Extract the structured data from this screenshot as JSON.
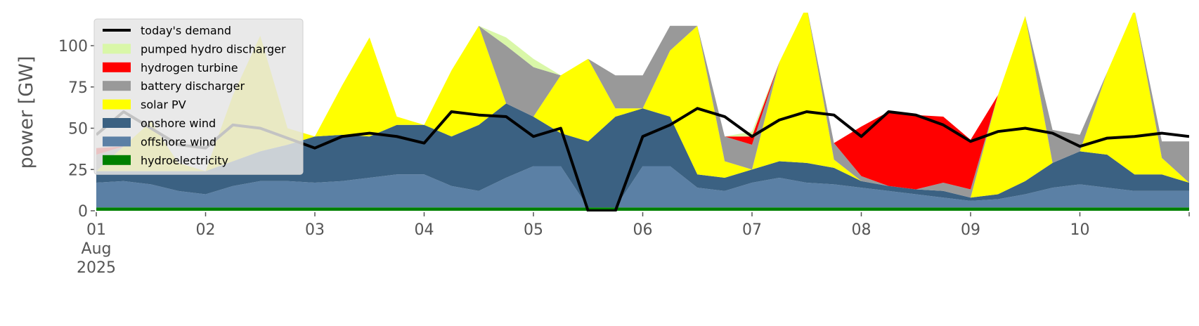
{
  "chart_data": {
    "type": "stacked_area_line",
    "ylabel": "power [GW]",
    "ylim": [
      0,
      120
    ],
    "yticks": [
      0,
      25,
      50,
      75,
      100
    ],
    "xlim": [
      "2025-08-01 00:00",
      "2025-08-11 00:00"
    ],
    "xticks": [
      {
        "value": "2025-08-01 00:00",
        "label": "01\nAug\n2025"
      },
      {
        "value": "2025-08-02 00:00",
        "label": "02"
      },
      {
        "value": "2025-08-03 00:00",
        "label": "03"
      },
      {
        "value": "2025-08-04 00:00",
        "label": "04"
      },
      {
        "value": "2025-08-05 00:00",
        "label": "05"
      },
      {
        "value": "2025-08-06 00:00",
        "label": "06"
      },
      {
        "value": "2025-08-07 00:00",
        "label": "07"
      },
      {
        "value": "2025-08-08 00:00",
        "label": "08"
      },
      {
        "value": "2025-08-09 00:00",
        "label": "09"
      },
      {
        "value": "2025-08-10 00:00",
        "label": "10"
      },
      {
        "value": "2025-08-11 00:00",
        "label": ""
      }
    ],
    "legend": "upper left",
    "x": [
      "2025-08-01 00:00",
      "2025-08-01 06:00",
      "2025-08-01 12:00",
      "2025-08-01 18:00",
      "2025-08-02 00:00",
      "2025-08-02 06:00",
      "2025-08-02 12:00",
      "2025-08-02 18:00",
      "2025-08-03 00:00",
      "2025-08-03 06:00",
      "2025-08-03 12:00",
      "2025-08-03 18:00",
      "2025-08-04 00:00",
      "2025-08-04 06:00",
      "2025-08-04 12:00",
      "2025-08-04 18:00",
      "2025-08-05 00:00",
      "2025-08-05 06:00",
      "2025-08-05 12:00",
      "2025-08-05 18:00",
      "2025-08-06 00:00",
      "2025-08-06 06:00",
      "2025-08-06 12:00",
      "2025-08-06 18:00",
      "2025-08-07 00:00",
      "2025-08-07 06:00",
      "2025-08-07 12:00",
      "2025-08-07 18:00",
      "2025-08-08 00:00",
      "2025-08-08 06:00",
      "2025-08-08 12:00",
      "2025-08-08 18:00",
      "2025-08-09 00:00",
      "2025-08-09 06:00",
      "2025-08-09 12:00",
      "2025-08-09 18:00",
      "2025-08-10 00:00",
      "2025-08-10 06:00",
      "2025-08-10 12:00",
      "2025-08-10 18:00",
      "2025-08-11 00:00"
    ],
    "series": [
      {
        "name": "hydroelectricity",
        "color": "#008000",
        "values": [
          2,
          2,
          2,
          2,
          2,
          2,
          2,
          2,
          2,
          2,
          2,
          2,
          2,
          2,
          2,
          2,
          2,
          2,
          2,
          2,
          2,
          2,
          2,
          2,
          2,
          2,
          2,
          2,
          2,
          2,
          2,
          2,
          2,
          2,
          2,
          2,
          2,
          2,
          2,
          2,
          2
        ]
      },
      {
        "name": "offshore wind",
        "color": "#5b80a5",
        "values": [
          15,
          16,
          14,
          10,
          8,
          13,
          16,
          16,
          15,
          16,
          18,
          20,
          20,
          13,
          10,
          18,
          25,
          25,
          0,
          0,
          25,
          25,
          12,
          10,
          15,
          18,
          15,
          14,
          12,
          10,
          8,
          6,
          4,
          5,
          8,
          12,
          14,
          12,
          10,
          10,
          10
        ]
      },
      {
        "name": "onshore wind",
        "color": "#3b6182",
        "values": [
          7,
          6,
          8,
          12,
          14,
          15,
          18,
          22,
          28,
          28,
          25,
          30,
          30,
          30,
          40,
          45,
          30,
          20,
          40,
          55,
          35,
          30,
          8,
          8,
          8,
          10,
          12,
          10,
          4,
          3,
          3,
          4,
          2,
          3,
          8,
          15,
          20,
          20,
          10,
          10,
          5
        ]
      },
      {
        "name": "solar PV",
        "color": "#ffff00",
        "values": [
          0,
          15,
          30,
          5,
          0,
          40,
          70,
          10,
          0,
          30,
          60,
          5,
          0,
          40,
          60,
          0,
          0,
          35,
          50,
          5,
          0,
          40,
          90,
          10,
          0,
          60,
          95,
          5,
          0,
          0,
          0,
          0,
          0,
          60,
          100,
          0,
          0,
          50,
          100,
          10,
          0
        ]
      },
      {
        "name": "battery discharger",
        "color": "#999999",
        "values": [
          10,
          0,
          0,
          0,
          0,
          0,
          0,
          0,
          0,
          0,
          0,
          0,
          0,
          0,
          0,
          35,
          30,
          0,
          0,
          20,
          20,
          15,
          0,
          15,
          15,
          0,
          0,
          10,
          3,
          0,
          0,
          5,
          5,
          0,
          0,
          20,
          10,
          0,
          0,
          10,
          25
        ]
      },
      {
        "name": "hydrogen turbine",
        "color": "#ff0000",
        "values": [
          4,
          0,
          0,
          0,
          0,
          0,
          0,
          0,
          0,
          0,
          0,
          0,
          0,
          0,
          0,
          0,
          0,
          0,
          0,
          0,
          0,
          0,
          0,
          0,
          5,
          0,
          0,
          0,
          30,
          45,
          45,
          40,
          30,
          0,
          0,
          0,
          0,
          0,
          0,
          0,
          0
        ]
      },
      {
        "name": "pumped hydro discharger",
        "color": "#d9f7a8",
        "values": [
          0,
          0,
          0,
          0,
          0,
          0,
          0,
          0,
          0,
          0,
          0,
          0,
          0,
          0,
          0,
          5,
          5,
          0,
          0,
          0,
          0,
          0,
          0,
          0,
          3,
          0,
          0,
          0,
          0,
          0,
          0,
          0,
          0,
          0,
          0,
          0,
          0,
          0,
          0,
          0,
          0
        ]
      }
    ],
    "demand": {
      "name": "today's demand",
      "color": "#000000",
      "values": [
        46,
        60,
        50,
        40,
        38,
        52,
        50,
        44,
        38,
        45,
        47,
        45,
        41,
        60,
        58,
        57,
        45,
        50,
        0,
        0,
        45,
        52,
        62,
        57,
        45,
        55,
        60,
        58,
        45,
        60,
        58,
        52,
        42,
        48,
        50,
        47,
        39,
        44,
        45,
        47,
        45
      ]
    }
  }
}
